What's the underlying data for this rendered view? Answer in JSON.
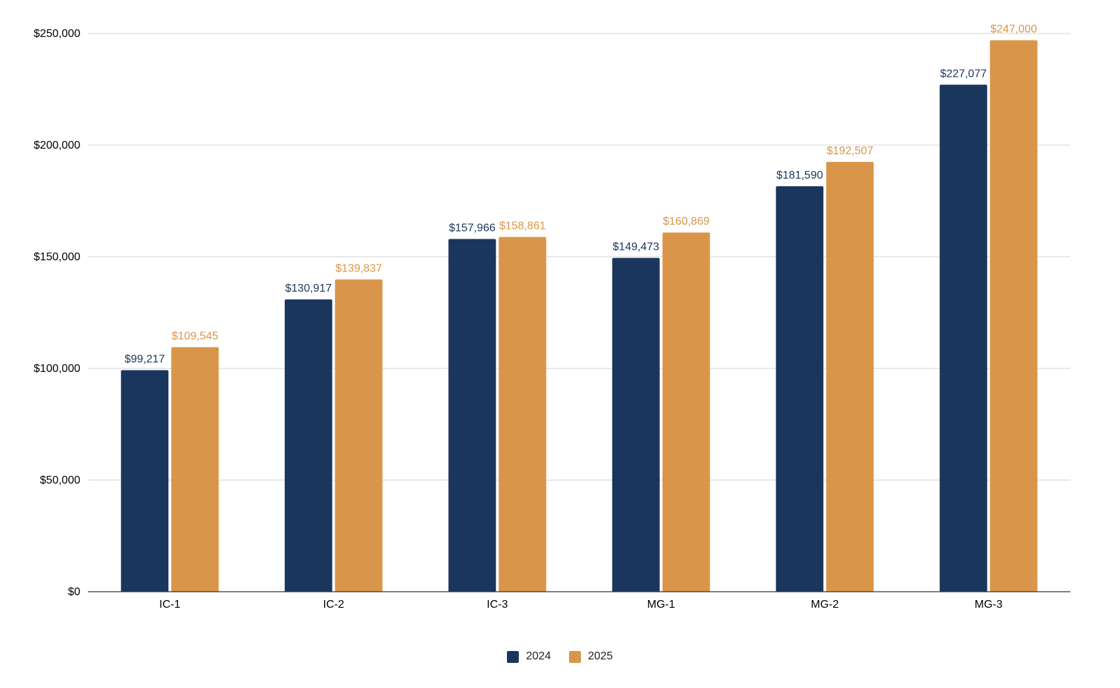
{
  "chart_data": {
    "type": "bar",
    "title": "",
    "xlabel": "",
    "ylabel": "",
    "categories": [
      "IC-1",
      "IC-2",
      "IC-3",
      "MG-1",
      "MG-2",
      "MG-3"
    ],
    "series": [
      {
        "name": "2024",
        "color": "#1b365d",
        "values": [
          99217,
          130917,
          157966,
          149473,
          181590,
          227077
        ],
        "labels": [
          "$99,217",
          "$130,917",
          "$157,966",
          "$149,473",
          "$181,590",
          "$227,077"
        ]
      },
      {
        "name": "2025",
        "color": "#d9964b",
        "values": [
          109545,
          139837,
          158861,
          160869,
          192507,
          247000
        ],
        "labels": [
          "$109,545",
          "$139,837",
          "$158,861",
          "$160,869",
          "$192,507",
          "$247,000"
        ]
      }
    ],
    "ylim": [
      0,
      250000
    ],
    "yticks": [
      0,
      50000,
      100000,
      150000,
      200000,
      250000
    ],
    "ytick_labels": [
      "$0",
      "$50,000",
      "$100,000",
      "$150,000",
      "$200,000",
      "$250,000"
    ],
    "grid": true,
    "legend_position": "bottom"
  }
}
